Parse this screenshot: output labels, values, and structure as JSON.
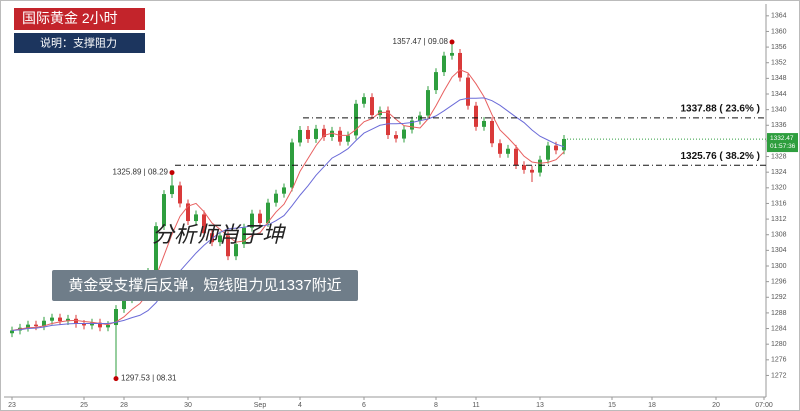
{
  "chart_data": {
    "type": "candlestick",
    "title": "国际黄金  2小时",
    "subtitle": "说明：支撑阻力",
    "watermark": "分析师肖子坤",
    "caption": "黄金受支撑后反弹，短线阻力见1337附近",
    "categories": [
      "23",
      null,
      null,
      null,
      null,
      null,
      null,
      null,
      null,
      "25",
      null,
      null,
      null,
      null,
      "28",
      null,
      null,
      null,
      null,
      null,
      null,
      null,
      "30",
      null,
      null,
      null,
      null,
      null,
      null,
      null,
      null,
      "Sep",
      null,
      null,
      null,
      null,
      "4",
      null,
      null,
      null,
      null,
      null,
      null,
      null,
      "6",
      null,
      null,
      null,
      null,
      null,
      null,
      null,
      null,
      "8",
      null,
      null,
      null,
      null,
      "11",
      null,
      null,
      null,
      null,
      null,
      null,
      null,
      "13",
      null,
      null,
      null,
      null,
      null,
      null,
      null,
      null,
      "15",
      null,
      null,
      null,
      null,
      "18",
      null,
      null,
      null,
      null,
      null,
      null,
      null,
      "20",
      null,
      null,
      null,
      null,
      null,
      "07:00"
    ],
    "open": [
      1282.8,
      1283.5,
      1284.2,
      1285.0,
      1284.6,
      1286.0,
      1286.8,
      1285.9,
      1286.5,
      1285.2,
      1284.8,
      1285.5,
      1284.3,
      1284.9,
      1289.0,
      1291.5,
      1293.8,
      1292.6,
      1298.5,
      1310.2,
      1318.4,
      1320.6,
      1316.0,
      1311.5,
      1313.2,
      1308.4,
      1306.1,
      1307.8,
      1302.5,
      1305.6,
      1309.8,
      1313.4,
      1311.0,
      1316.2,
      1318.5,
      1320.1,
      1331.6,
      1334.8,
      1332.5,
      1335.1,
      1333.0,
      1334.6,
      1331.8,
      1333.4,
      1341.5,
      1343.2,
      1338.6,
      1339.8,
      1333.5,
      1332.6,
      1334.9,
      1337.2,
      1338.5,
      1345.0,
      1349.6,
      1353.8,
      1354.5,
      1348.2,
      1341.0,
      1335.6,
      1337.1,
      1331.4,
      1328.7,
      1330.0,
      1325.8,
      1324.6,
      1323.9,
      1327.2,
      1330.8,
      1329.6,
      null,
      null,
      null,
      null,
      null,
      null,
      null,
      null,
      null,
      null,
      null,
      null,
      null,
      null,
      null,
      null,
      null,
      null,
      null,
      null,
      null,
      null,
      null,
      null,
      null
    ],
    "high": [
      1284.5,
      1285.2,
      1286.0,
      1286.0,
      1287.0,
      1287.8,
      1287.8,
      1287.5,
      1287.5,
      1286.2,
      1286.5,
      1286.5,
      1285.9,
      1290.0,
      1292.5,
      1294.8,
      1294.8,
      1299.5,
      1311.2,
      1319.4,
      1323.9,
      1321.6,
      1317.0,
      1314.2,
      1314.2,
      1309.4,
      1308.8,
      1308.8,
      1306.6,
      1310.8,
      1314.4,
      1314.4,
      1317.2,
      1319.5,
      1321.1,
      1332.6,
      1335.8,
      1335.8,
      1336.1,
      1336.1,
      1335.6,
      1335.6,
      1334.4,
      1342.5,
      1344.2,
      1344.2,
      1340.8,
      1340.8,
      1334.5,
      1335.9,
      1338.2,
      1339.5,
      1346.0,
      1350.6,
      1354.8,
      1357.3,
      1355.5,
      1349.2,
      1342.0,
      1338.1,
      1338.1,
      1332.4,
      1331.0,
      1331.0,
      1326.8,
      1325.6,
      1328.2,
      1331.8,
      1331.8,
      1333.5,
      null,
      null,
      null,
      null,
      null,
      null,
      null,
      null,
      null,
      null,
      null,
      null,
      null,
      null,
      null,
      null,
      null,
      null,
      null,
      null,
      null,
      null,
      null,
      null,
      null
    ],
    "low": [
      1281.8,
      1282.5,
      1283.2,
      1283.6,
      1283.6,
      1285.0,
      1284.9,
      1284.9,
      1284.2,
      1283.8,
      1283.8,
      1283.3,
      1283.3,
      1271.2,
      1288.0,
      1290.5,
      1291.6,
      1291.6,
      1297.5,
      1309.2,
      1317.4,
      1315.0,
      1310.5,
      1310.5,
      1307.4,
      1305.1,
      1305.1,
      1301.5,
      1301.5,
      1304.6,
      1308.8,
      1310.0,
      1310.0,
      1315.2,
      1317.5,
      1319.1,
      1330.6,
      1331.5,
      1331.5,
      1332.0,
      1332.0,
      1330.8,
      1330.8,
      1332.4,
      1340.5,
      1337.6,
      1337.6,
      1332.5,
      1331.6,
      1331.6,
      1333.9,
      1336.2,
      1337.5,
      1344.0,
      1348.6,
      1352.8,
      1347.2,
      1340.0,
      1334.6,
      1334.6,
      1330.4,
      1327.7,
      1327.7,
      1324.8,
      1323.6,
      1321.5,
      1322.9,
      1326.2,
      1328.6,
      1328.6,
      null,
      null,
      null,
      null,
      null,
      null,
      null,
      null,
      null,
      null,
      null,
      null,
      null,
      null,
      null,
      null,
      null,
      null,
      null,
      null,
      null,
      null,
      null,
      null,
      null
    ],
    "close": [
      1283.5,
      1284.2,
      1285.0,
      1284.6,
      1286.0,
      1286.8,
      1285.9,
      1286.5,
      1285.2,
      1284.8,
      1285.5,
      1284.3,
      1284.9,
      1289.0,
      1291.5,
      1293.8,
      1292.6,
      1298.5,
      1310.2,
      1318.4,
      1320.6,
      1316.0,
      1311.5,
      1313.2,
      1308.4,
      1306.1,
      1307.8,
      1302.5,
      1305.6,
      1309.8,
      1313.4,
      1311.0,
      1316.2,
      1318.5,
      1320.1,
      1331.6,
      1334.8,
      1332.5,
      1335.1,
      1333.0,
      1334.6,
      1331.8,
      1333.4,
      1341.5,
      1343.2,
      1338.6,
      1339.8,
      1333.5,
      1332.6,
      1334.9,
      1337.2,
      1338.5,
      1345.0,
      1349.6,
      1353.8,
      1354.5,
      1348.2,
      1341.0,
      1335.6,
      1337.1,
      1331.4,
      1328.7,
      1330.0,
      1325.8,
      1324.6,
      1323.9,
      1327.2,
      1330.8,
      1329.6,
      1332.5,
      null,
      null,
      null,
      null,
      null,
      null,
      null,
      null,
      null,
      null,
      null,
      null,
      null,
      null,
      null,
      null,
      null,
      null,
      null,
      null,
      null,
      null,
      null,
      null,
      null
    ],
    "up_color": "#2e9e3e",
    "down_color": "#d93a3a",
    "moving_averages": [
      {
        "color": "#e86060",
        "values": [
          1283.5,
          1283.9,
          1284.2,
          1284.3,
          1284.7,
          1285.3,
          1285.7,
          1286.0,
          1286.1,
          1285.8,
          1285.6,
          1285.3,
          1285.0,
          1285.7,
          1287.0,
          1288.9,
          1290.4,
          1293.1,
          1297.3,
          1302.7,
          1308.1,
          1312.7,
          1315.3,
          1316.0,
          1313.9,
          1311.0,
          1309.4,
          1307.6,
          1306.1,
          1306.4,
          1307.8,
          1308.5,
          1311.2,
          1313.8,
          1315.8,
          1319.5,
          1324.2,
          1327.5,
          1330.8,
          1333.4,
          1334.0,
          1333.4,
          1333.4,
          1334.9,
          1336.9,
          1337.7,
          1339.3,
          1339.3,
          1337.5,
          1335.9,
          1335.6,
          1335.3,
          1337.6,
          1341.0,
          1344.8,
          1348.3,
          1350.2,
          1349.4,
          1346.6,
          1343.3,
          1338.7,
          1334.8,
          1332.8,
          1330.6,
          1328.1,
          1326.6,
          1326.3,
          1326.5,
          1327.2,
          1329.2,
          null,
          null,
          null,
          null,
          null,
          null,
          null,
          null,
          null,
          null,
          null,
          null,
          null,
          null,
          null,
          null,
          null,
          null,
          null,
          null,
          null,
          null,
          null,
          null,
          null
        ]
      },
      {
        "color": "#6b6bd8",
        "values": [
          1283.5,
          1283.7,
          1284.0,
          1284.1,
          1284.4,
          1284.8,
          1285.0,
          1285.2,
          1285.3,
          1285.3,
          1285.3,
          1285.3,
          1285.3,
          1285.6,
          1286.1,
          1286.8,
          1287.4,
          1288.6,
          1290.6,
          1293.4,
          1296.3,
          1298.7,
          1301.0,
          1303.3,
          1305.3,
          1307.0,
          1308.6,
          1309.5,
          1309.7,
          1309.9,
          1310.3,
          1310.2,
          1310.5,
          1311.6,
          1312.9,
          1315.4,
          1318.1,
          1320.5,
          1323.2,
          1325.4,
          1327.6,
          1328.7,
          1330.0,
          1332.1,
          1334.0,
          1335.0,
          1336.0,
          1336.4,
          1336.4,
          1336.5,
          1336.7,
          1337.2,
          1337.6,
          1338.4,
          1339.7,
          1341.1,
          1342.5,
          1342.9,
          1342.9,
          1343.0,
          1342.3,
          1341.1,
          1339.6,
          1338.1,
          1336.7,
          1334.8,
          1333.2,
          1332.2,
          1331.2,
          1330.5,
          null,
          null,
          null,
          null,
          null,
          null,
          null,
          null,
          null,
          null,
          null,
          null,
          null,
          null,
          null,
          null,
          null,
          null,
          null,
          null,
          null,
          null,
          null,
          null,
          null
        ]
      }
    ],
    "point_labels": [
      "1357.47 | 09.08",
      "1325.89 | 08.29",
      "1297.53 | 08.31"
    ],
    "levels": [
      {
        "value": 1337.88,
        "label": "1337.88 ( 23.6% )"
      },
      {
        "value": 1325.76,
        "label": "1325.76 ( 38.2% )"
      }
    ],
    "last_price": 1332.47,
    "countdown": "01:57:36",
    "ylim": [
      1267,
      1366
    ],
    "yticks": [
      1272,
      1276,
      1280,
      1284,
      1288,
      1292,
      1296,
      1300,
      1304,
      1308,
      1312,
      1316,
      1320,
      1324,
      1328,
      1332,
      1336,
      1340,
      1344,
      1348,
      1352,
      1356,
      1360,
      1364
    ]
  }
}
